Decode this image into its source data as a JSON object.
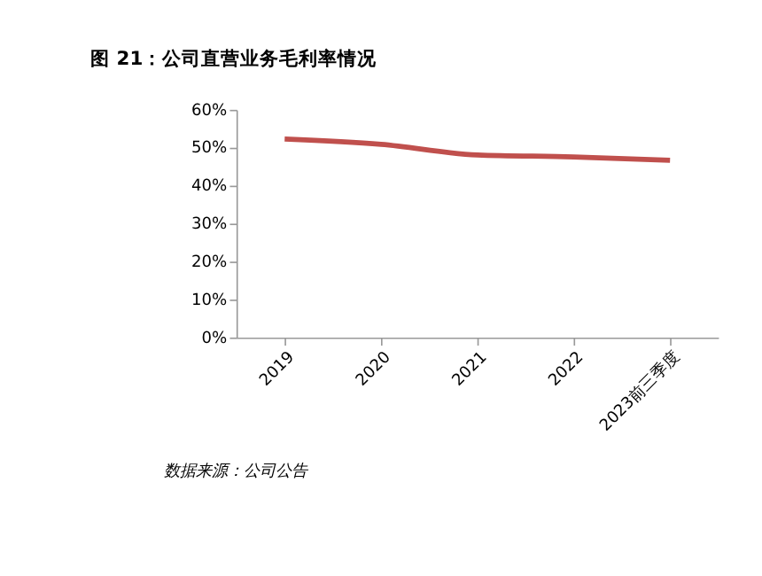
{
  "chart_data": {
    "type": "line",
    "title": "图 21：公司直营业务毛利率情况",
    "categories": [
      "2019",
      "2020",
      "2021",
      "2022",
      "2023前三季度"
    ],
    "series": [
      {
        "color": "#c0504d",
        "values": [
          52.3,
          50.9,
          48.1,
          47.6,
          46.7
        ]
      }
    ],
    "ylim": [
      0,
      60
    ],
    "yticks": [
      {
        "value": 0,
        "label": "0%"
      },
      {
        "value": 10,
        "label": "10%"
      },
      {
        "value": 20,
        "label": "20%"
      },
      {
        "value": 30,
        "label": "30%"
      },
      {
        "value": 40,
        "label": "40%"
      },
      {
        "value": 50,
        "label": "50%"
      },
      {
        "value": 60,
        "label": "60%"
      }
    ],
    "grid": false,
    "legend": false,
    "marker": "none",
    "line_style": "solid",
    "annotations": [
      "数据来源：公司公告"
    ]
  }
}
